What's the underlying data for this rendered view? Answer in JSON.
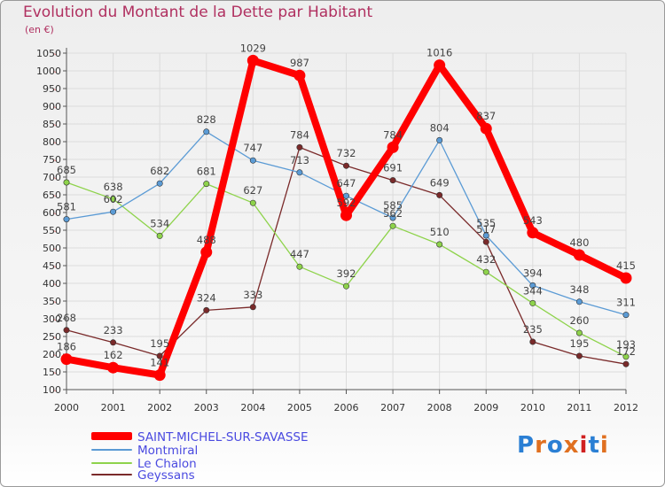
{
  "header": {
    "title": "Evolution du Montant de la Dette par Habitant",
    "unit": "(en €)"
  },
  "brand": {
    "name": "Proxiti",
    "letter_colors": [
      "#2a7fd4",
      "#e07020",
      "#2a7fd4",
      "#e07020",
      "#d02020",
      "#2a7fd4",
      "#e07020"
    ]
  },
  "chart_data": {
    "type": "line",
    "title": "Evolution du Montant de la Dette par Habitant",
    "ylabel": "(en €)",
    "xlabel": "",
    "x": [
      "2000",
      "2001",
      "2002",
      "2003",
      "2004",
      "2005",
      "2006",
      "2007",
      "2008",
      "2009",
      "2010",
      "2011",
      "2012"
    ],
    "ylim": [
      100,
      1050
    ],
    "yticks": [
      100,
      150,
      200,
      250,
      300,
      350,
      400,
      450,
      500,
      550,
      600,
      650,
      700,
      750,
      800,
      850,
      900,
      950,
      1000,
      1050
    ],
    "grid": true,
    "legend_position": "bottom-left",
    "series": [
      {
        "name": "SAINT-MICHEL-SUR-SAVASSE",
        "color": "#ff0000",
        "values": [
          186,
          162,
          141,
          488,
          1029,
          987,
          592,
          784,
          1016,
          837,
          543,
          480,
          415
        ],
        "labels": [
          "186",
          "162",
          "141",
          "488",
          "1029",
          "987",
          "592",
          "784",
          "1016",
          "837",
          "543",
          "480",
          "415"
        ]
      },
      {
        "name": "Montmiral",
        "color": "#5b9bd5",
        "values": [
          581,
          602,
          682,
          828,
          747,
          713,
          647,
          585,
          804,
          535,
          394,
          348,
          311
        ],
        "labels": [
          "581",
          "602",
          "682",
          "828",
          "747",
          "713",
          "647",
          "585",
          "804",
          "535",
          "394",
          "348",
          "311"
        ]
      },
      {
        "name": "Le Chalon",
        "color": "#8ed34b",
        "values": [
          685,
          638,
          534,
          681,
          627,
          447,
          392,
          562,
          510,
          432,
          344,
          260,
          193
        ],
        "labels": [
          "685",
          "638",
          "534",
          "681",
          "627",
          "447",
          "392",
          "562",
          "510",
          "432",
          "344",
          "260",
          "193"
        ]
      },
      {
        "name": "Geyssans",
        "color": "#7a2a2a",
        "values": [
          268,
          233,
          195,
          324,
          333,
          784,
          732,
          691,
          649,
          517,
          235,
          195,
          172
        ],
        "labels": [
          "268",
          "233",
          "195",
          "324",
          "333",
          "784",
          "732",
          "691",
          "649",
          "517",
          "235",
          "195",
          "172"
        ]
      }
    ]
  }
}
